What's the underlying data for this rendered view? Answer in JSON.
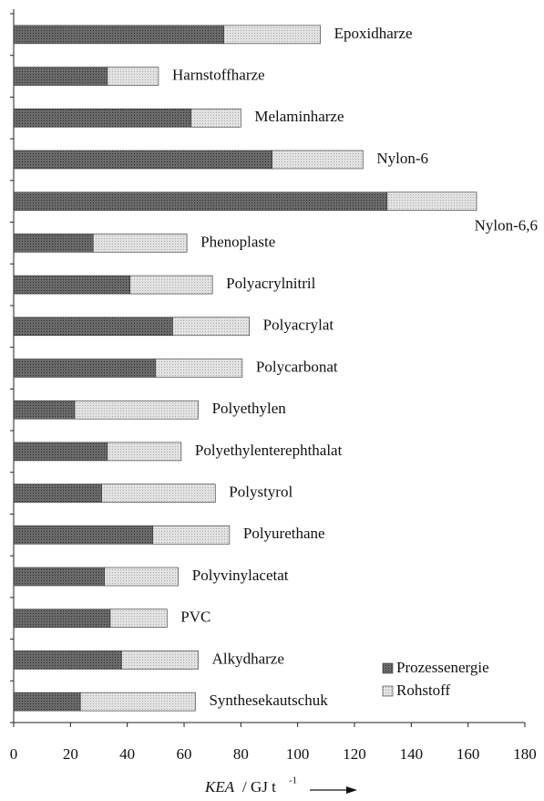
{
  "chart_data": {
    "type": "stacked-bar-horizontal",
    "categories": [
      "Epoxidharze",
      "Harnstoffharze",
      "Melaminharze",
      "Nylon-6",
      "Nylon-6,6",
      "Phenoplaste",
      "Polyacrylnitril",
      "Polyacrylat",
      "Polycarbonat",
      "Polyethylen",
      "Polyethylenterephthalat",
      "Polystyrol",
      "Polyurethane",
      "Polyvinylacetat",
      "PVC",
      "Alkydharze",
      "Synthesekautschuk"
    ],
    "series": [
      {
        "name": "Prozessenergie",
        "color": "#6a6a6a",
        "values": [
          74,
          33,
          62.5,
          91,
          131.5,
          28,
          41,
          56,
          50,
          21.5,
          33,
          31,
          49,
          32,
          34,
          38,
          23.5
        ]
      },
      {
        "name": "Rohstoff",
        "color": "#dcdcdc",
        "values": [
          34,
          18,
          17.5,
          32,
          31.5,
          33,
          29,
          27,
          30.5,
          43.5,
          26,
          40,
          27,
          26,
          20,
          27,
          40.5
        ]
      }
    ],
    "xlim": [
      0,
      180
    ],
    "xticks": [
      0,
      20,
      40,
      60,
      80,
      100,
      120,
      140,
      160,
      180
    ],
    "xlabel": {
      "main": "KEA",
      "unit": "/ GJ t",
      "exponent": "-1"
    },
    "legend": "bottom-right"
  }
}
